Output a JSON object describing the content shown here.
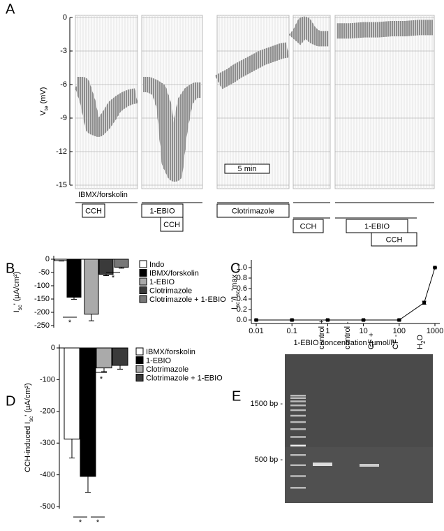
{
  "chart_data": [
    {
      "type": "trace",
      "label": "A",
      "ylabel": [
        "V",
        "te",
        " (mV)"
      ],
      "ylim": [
        -15,
        0
      ],
      "yticks": [
        0,
        -3,
        -6,
        -9,
        -12,
        -15
      ],
      "segments": [
        {
          "values": [
            -6,
            -6,
            -7.5,
            -9.8,
            -10,
            -9.5,
            -8.8,
            -8,
            -7.6,
            -7.3,
            -7.1,
            -7
          ]
        },
        {
          "values": [
            -6,
            -6,
            -6.2,
            -6.5,
            -8,
            -13,
            -14,
            -10,
            -7.5,
            -6.8,
            -6.5,
            -6.5
          ]
        },
        {
          "values": [
            -5.8,
            -5.5,
            -5.2,
            -4.8,
            -4.5,
            -4.2,
            -3.9,
            -3.6,
            -3.4,
            -3.2,
            -3.0,
            -2.9
          ]
        },
        {
          "values": [
            -2,
            -1.5,
            -0.6,
            -1.3,
            -1.7,
            -1.9,
            -1.9,
            -1.9
          ]
        },
        {
          "values": [
            -1.2,
            -1.2,
            -1.1,
            -1.1,
            -1.0,
            -1.0,
            -0.9,
            -0.9
          ]
        }
      ],
      "treatments": [
        "IBMX/forskolin",
        "CCH",
        "1-EBIO",
        "CCH",
        "Clotrimazole",
        "CCH",
        "1-EBIO",
        "CCH"
      ],
      "scale_label": "5 min"
    },
    {
      "type": "bar",
      "label": "B",
      "ylabel": [
        "I",
        "sc",
        "' (µA/cm²)"
      ],
      "categories": [
        "Indo",
        "IBMX/forskolin",
        "1-EBIO",
        "Clotrimazole",
        "Clotrimazole + 1-EBIO"
      ],
      "values": [
        -5,
        -143,
        -207,
        -57,
        -30
      ],
      "errors": [
        2,
        8,
        25,
        5,
        4
      ],
      "colors": [
        "#ffffff",
        "#000000",
        "#aaaaaa",
        "#3a3a3a",
        "#777777"
      ],
      "ylim": [
        -250,
        0
      ],
      "yticks": [
        0,
        -50,
        -100,
        -150,
        -200,
        -250
      ],
      "annotations": [
        "*",
        "*",
        "*",
        "*"
      ]
    },
    {
      "type": "line",
      "label": "C",
      "ylabel": [
        "I",
        "sc",
        "'/I",
        "sc",
        "'max"
      ],
      "xlabel": "1-EBIO concentration (µmol/l)",
      "x": [
        0.01,
        0.1,
        1,
        10,
        100,
        500,
        1000
      ],
      "values": [
        0,
        0,
        0,
        0,
        0,
        0.33,
        1.0
      ],
      "errors": [
        0.01,
        0.01,
        0.01,
        0.01,
        0.01,
        0.03,
        0.01
      ],
      "xlim": [
        0.01,
        1000
      ],
      "xticks": [
        0.01,
        0.1,
        1,
        10,
        100,
        1000
      ],
      "log_x": true,
      "ylim": [
        0,
        1.0
      ],
      "yticks": [
        {
          "value": 0,
          "label": "0.0"
        },
        {
          "value": 0.2,
          "label": "0.2"
        },
        {
          "value": 0.4,
          "label": "0.4"
        },
        {
          "value": 0.6,
          "label": "0.6"
        },
        {
          "value": 0.8,
          "label": "0.8"
        },
        {
          "value": 1.0,
          "label": "1.0"
        }
      ]
    },
    {
      "type": "bar",
      "label": "D",
      "ylabel": [
        "CCH-induced I",
        "sc",
        "' (µA/cm²)"
      ],
      "categories": [
        "IBMX/forskolin",
        "1-EBIO",
        "Clotrimazole",
        "Clotrimazole + 1-EBIO"
      ],
      "values": [
        -287,
        -405,
        -63,
        -55
      ],
      "errors": [
        60,
        50,
        12,
        12
      ],
      "colors": [
        "#ffffff",
        "#000000",
        "#aaaaaa",
        "#3a3a3a"
      ],
      "ylim": [
        -500,
        0
      ],
      "yticks": [
        0,
        -100,
        -200,
        -300,
        -400,
        -500
      ],
      "annotations": [
        "*",
        "*"
      ]
    }
  ],
  "gel": {
    "label": "E",
    "lanes": [
      [
        "control +"
      ],
      [
        "control -"
      ],
      [
        "CF +"
      ],
      [
        "CF -"
      ],
      [
        "H",
        "2",
        "O"
      ]
    ],
    "markers": [
      "1500 bp -",
      "500 bp -"
    ]
  }
}
